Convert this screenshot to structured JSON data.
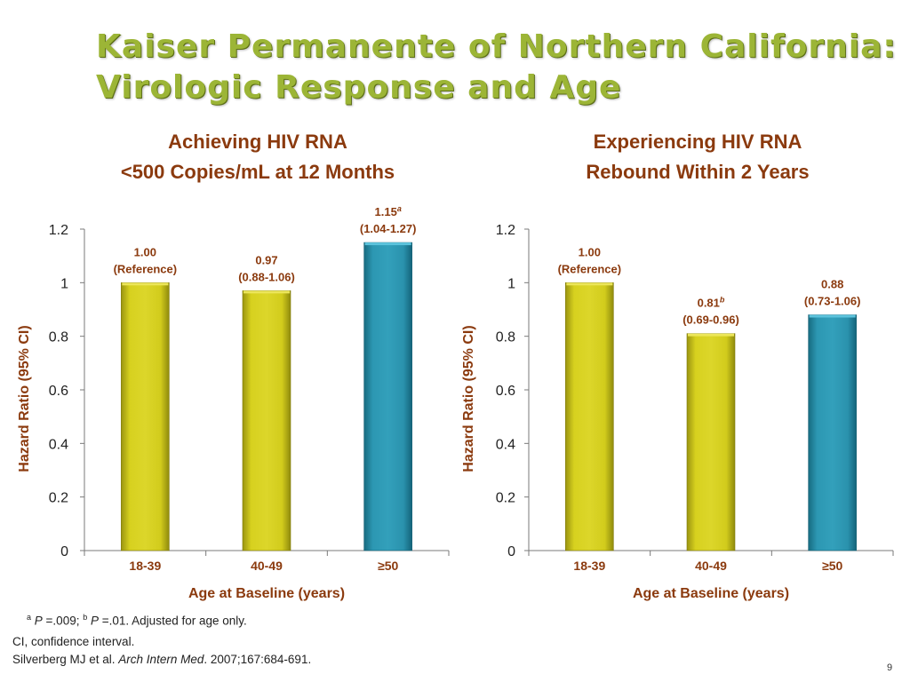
{
  "slide": {
    "title_lines": [
      "Kaiser Permanente of Northern California:",
      "Virologic Response and Age"
    ],
    "page_number": "9",
    "footnotes": {
      "pvalues": {
        "a_sup": "a",
        "a_p": "P",
        "a_val": " =.009; ",
        "b_sup": "b",
        "b_p": "P",
        "b_val": " =.01. Adjusted for age only."
      },
      "ci": "CI, confidence interval.",
      "citation": {
        "authors": "Silverberg MJ et al. ",
        "journal": "Arch Intern Med",
        "rest": ". 2007;167:684-691."
      }
    }
  },
  "colors": {
    "title": "#9cb536",
    "chart_title": "#8b3a0e",
    "bar_yellow": "#cfc81a",
    "bar_teal": "#2a93ae",
    "label": "#8b3a0e"
  },
  "chart_data": [
    {
      "type": "bar",
      "title_lines": [
        "Achieving HIV RNA",
        "<500 Copies/mL at 12 Months"
      ],
      "categories": [
        "18-39",
        "40-49",
        "≥50"
      ],
      "values": [
        1.0,
        0.97,
        1.15
      ],
      "bar_colors": [
        "yellow",
        "yellow",
        "teal"
      ],
      "data_labels": [
        {
          "value": "1.00",
          "sup": "",
          "sub": "(Reference)"
        },
        {
          "value": "0.97",
          "sup": "",
          "sub": "(0.88-1.06)"
        },
        {
          "value": "1.15",
          "sup": "a",
          "sub": "(1.04-1.27)"
        }
      ],
      "xlabel": "Age at Baseline (years)",
      "ylabel": "Hazard Ratio (95% CI)",
      "ylim": [
        0,
        1.2
      ],
      "yticks": [
        "0",
        "0.2",
        "0.4",
        "0.6",
        "0.8",
        "1",
        "1.2"
      ],
      "grid": false
    },
    {
      "type": "bar",
      "title_lines": [
        "Experiencing HIV RNA",
        "Rebound Within 2 Years"
      ],
      "categories": [
        "18-39",
        "40-49",
        "≥50"
      ],
      "values": [
        1.0,
        0.81,
        0.88
      ],
      "bar_colors": [
        "yellow",
        "yellow",
        "teal"
      ],
      "data_labels": [
        {
          "value": "1.00",
          "sup": "",
          "sub": "(Reference)"
        },
        {
          "value": "0.81",
          "sup": "b",
          "sub": "(0.69-0.96)"
        },
        {
          "value": "0.88",
          "sup": "",
          "sub": "(0.73-1.06)"
        }
      ],
      "xlabel": "Age at Baseline (years)",
      "ylabel": "Hazard Ratio (95% CI)",
      "ylim": [
        0,
        1.2
      ],
      "yticks": [
        "0",
        "0.2",
        "0.4",
        "0.6",
        "0.8",
        "1",
        "1.2"
      ],
      "grid": false
    }
  ]
}
